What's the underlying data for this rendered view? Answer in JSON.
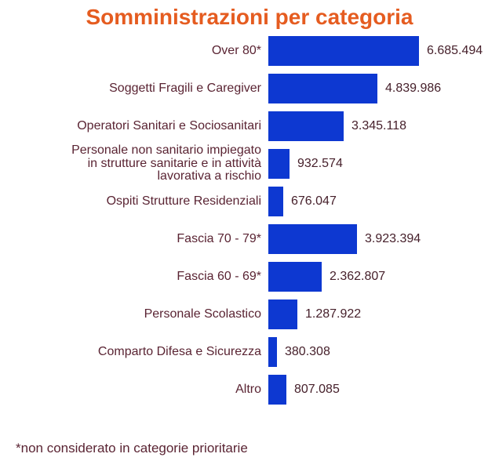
{
  "title": "Somministrazioni per categoria",
  "footnote": "*non considerato in categorie prioritarie",
  "colors": {
    "background": "#ffffff",
    "title_orange": "#e55c20",
    "bar_blue": "#0d38d1",
    "label_maroon": "#5a2433",
    "value_dark": "#46202b"
  },
  "chart_data": {
    "type": "bar",
    "orientation": "horizontal",
    "title": "Somministrazioni per categoria",
    "xlabel": "",
    "ylabel": "",
    "xlim": [
      0,
      6685494
    ],
    "grid": false,
    "legend": false,
    "categories": [
      "Over 80*",
      "Soggetti Fragili e Caregiver",
      "Operatori Sanitari e Sociosanitari",
      "Personale non sanitario impiegato\nin strutture sanitarie e in attività\nlavorativa a rischio",
      "Ospiti Strutture Residenziali",
      "Fascia 70 - 79*",
      "Fascia 60 - 69*",
      "Personale Scolastico",
      "Comparto Difesa e Sicurezza",
      "Altro"
    ],
    "values": [
      6685494,
      4839986,
      3345118,
      932574,
      676047,
      3923394,
      2362807,
      1287922,
      380308,
      807085
    ],
    "value_labels": [
      "6.685.494",
      "4.839.986",
      "3.345.118",
      "932.574",
      "676.047",
      "3.923.394",
      "2.362.807",
      "1.287.922",
      "380.308",
      "807.085"
    ],
    "footnote": "*non considerato in categorie prioritarie"
  }
}
